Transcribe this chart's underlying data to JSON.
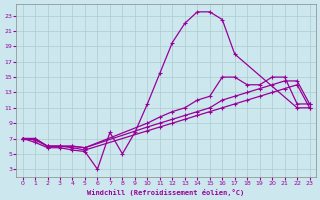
{
  "xlabel": "Windchill (Refroidissement éolien,°C)",
  "background_color": "#cce8ee",
  "grid_color": "#aacccc",
  "line_color": "#990099",
  "xlim": [
    -0.5,
    23.5
  ],
  "ylim": [
    2,
    24.5
  ],
  "xticks": [
    0,
    1,
    2,
    3,
    4,
    5,
    6,
    7,
    8,
    9,
    10,
    11,
    12,
    13,
    14,
    15,
    16,
    17,
    18,
    19,
    20,
    21,
    22,
    23
  ],
  "yticks": [
    3,
    5,
    7,
    9,
    11,
    13,
    15,
    17,
    19,
    21,
    23
  ],
  "line1_x": [
    0,
    1,
    2,
    3,
    4,
    5,
    6,
    7,
    8,
    9,
    10,
    11,
    12,
    13,
    14,
    15,
    16,
    17,
    22,
    23
  ],
  "line1_y": [
    7,
    6.5,
    5.8,
    5.8,
    5.5,
    5.3,
    3,
    7.8,
    5,
    7.8,
    11.5,
    15.5,
    19.5,
    22,
    23.5,
    23.5,
    22.5,
    18,
    11,
    11
  ],
  "line2_x": [
    0,
    1,
    2,
    3,
    4,
    5,
    10,
    11,
    12,
    13,
    14,
    15,
    16,
    17,
    18,
    19,
    20,
    21,
    22,
    23
  ],
  "line2_y": [
    7,
    7,
    6,
    6,
    6,
    5.8,
    9,
    9.8,
    10.5,
    11,
    12,
    12.5,
    15,
    15,
    14,
    14,
    15,
    15,
    11.5,
    11.5
  ],
  "line3_x": [
    0,
    1,
    2,
    3,
    4,
    5,
    10,
    11,
    12,
    13,
    14,
    15,
    16,
    17,
    18,
    19,
    20,
    21,
    22,
    23
  ],
  "line3_y": [
    7,
    7,
    6,
    6,
    6,
    5.8,
    8.5,
    9,
    9.5,
    10,
    10.5,
    11,
    12,
    12.5,
    13,
    13.5,
    14,
    14.5,
    14.5,
    11.5
  ],
  "line4_x": [
    0,
    1,
    2,
    3,
    4,
    5,
    10,
    11,
    12,
    13,
    14,
    15,
    16,
    17,
    18,
    19,
    20,
    21,
    22,
    23
  ],
  "line4_y": [
    7,
    6.8,
    6,
    6,
    5.8,
    5.5,
    8,
    8.5,
    9,
    9.5,
    10,
    10.5,
    11,
    11.5,
    12,
    12.5,
    13,
    13.5,
    14,
    11
  ]
}
